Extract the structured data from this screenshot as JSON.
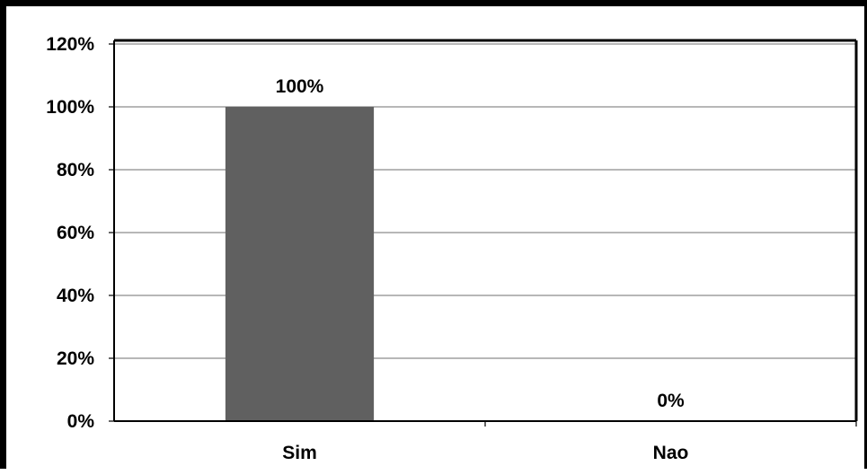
{
  "chart_data": {
    "type": "bar",
    "categories": [
      "Sim",
      "Nao"
    ],
    "values": [
      100,
      0
    ],
    "data_labels": [
      "100%",
      "0%"
    ],
    "ylim": [
      0,
      120
    ],
    "yticks": [
      0,
      20,
      40,
      60,
      80,
      100,
      120
    ],
    "ytick_labels": [
      "0%",
      "20%",
      "40%",
      "60%",
      "80%",
      "100%",
      "120%"
    ],
    "title": "",
    "xlabel": "",
    "ylabel": "",
    "grid": true,
    "legend": "none",
    "colors": {
      "bar": "#606060",
      "grid": "#8c8c8c",
      "axis": "#000000"
    }
  }
}
